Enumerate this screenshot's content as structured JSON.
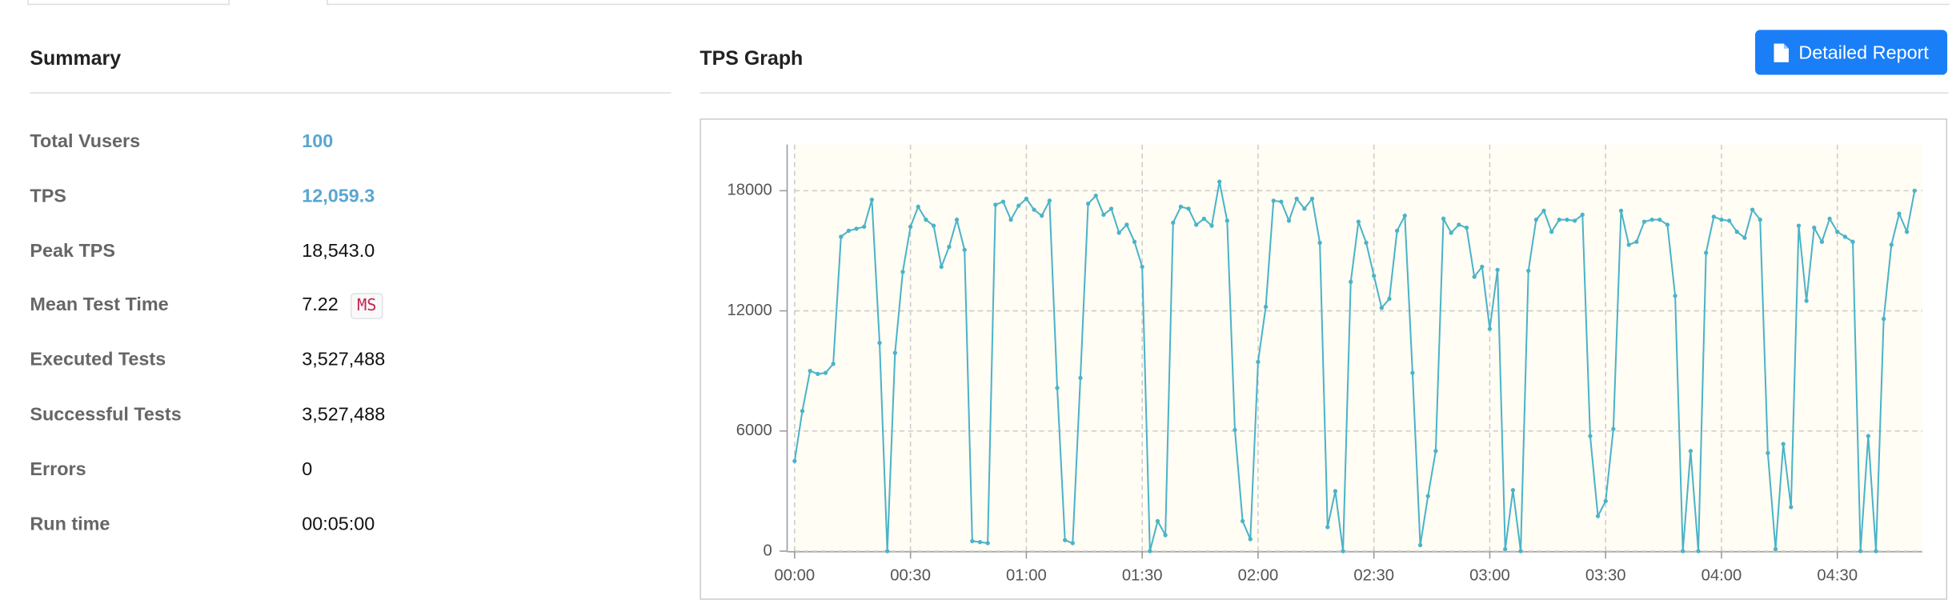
{
  "summary": {
    "title": "Summary",
    "rows": [
      {
        "label": "Total Vusers",
        "value": "100"
      },
      {
        "label": "TPS",
        "value": "12,059.3"
      },
      {
        "label": "Peak TPS",
        "value": "18,543.0"
      },
      {
        "label": "Mean Test Time",
        "value": "7.22",
        "unit": "MS"
      },
      {
        "label": "Executed Tests",
        "value": "3,527,488"
      },
      {
        "label": "Successful Tests",
        "value": "3,527,488"
      },
      {
        "label": "Errors",
        "value": "0"
      },
      {
        "label": "Run time",
        "value": "00:05:00"
      }
    ]
  },
  "graph_title": "TPS Graph",
  "button": "Detailed Report",
  "chart_data": {
    "type": "line",
    "color": "#4bb3c8",
    "grid": true,
    "x": [
      0,
      2,
      4,
      6,
      8,
      10,
      12,
      14,
      16,
      18,
      20,
      22,
      24,
      26,
      28,
      30,
      32,
      34,
      36,
      38,
      40,
      42,
      44,
      46,
      48,
      50,
      52,
      54,
      56,
      58,
      60,
      62,
      64,
      66,
      68,
      70,
      72,
      74,
      76,
      78,
      80,
      82,
      84,
      86,
      88,
      90,
      92,
      94,
      96,
      98,
      100,
      102,
      104,
      106,
      108,
      110,
      112,
      114,
      116,
      118,
      120,
      122,
      124,
      126,
      128,
      130,
      132,
      134,
      136,
      138,
      140,
      142,
      144,
      146,
      148,
      150,
      152,
      154,
      156,
      158,
      160,
      162,
      164,
      166,
      168,
      170,
      172,
      174,
      176,
      178,
      180,
      182,
      184,
      186,
      188,
      190,
      192,
      194,
      196,
      198,
      200,
      202,
      204,
      206,
      208,
      210,
      212,
      214,
      216,
      218,
      220,
      222,
      224,
      226,
      228,
      230,
      232,
      234,
      236,
      238,
      240,
      242,
      244,
      246,
      248,
      250,
      252,
      254,
      256,
      258,
      260,
      262,
      264,
      266,
      268,
      270,
      272,
      274,
      276,
      278,
      280,
      282,
      284,
      286,
      288,
      290
    ],
    "values": [
      4500,
      7000,
      9000,
      8850,
      8900,
      9350,
      15700,
      16000,
      16100,
      16200,
      17550,
      10400,
      0,
      9900,
      13950,
      16200,
      17200,
      16550,
      16250,
      14200,
      15200,
      16550,
      15050,
      500,
      450,
      400,
      17300,
      17450,
      16550,
      17250,
      17600,
      17050,
      16750,
      17500,
      8150,
      550,
      400,
      8650,
      17350,
      17750,
      16800,
      17100,
      15900,
      16300,
      15450,
      14200,
      0,
      1500,
      800,
      16400,
      17200,
      17100,
      16300,
      16600,
      16250,
      18450,
      16500,
      6050,
      1500,
      600,
      9450,
      12200,
      17500,
      17450,
      16500,
      17600,
      17100,
      17600,
      15400,
      1200,
      3000,
      0,
      13450,
      16450,
      15400,
      13750,
      12150,
      12600,
      16000,
      16750,
      8900,
      300,
      2750,
      5000,
      16600,
      15900,
      16300,
      16150,
      13700,
      14200,
      11100,
      14050,
      100,
      3050,
      0,
      14000,
      16550,
      17000,
      15950,
      16550,
      16550,
      16500,
      16800,
      5750,
      1750,
      2500,
      6100,
      17000,
      15300,
      15450,
      16450,
      16550,
      16550,
      16300,
      12750,
      0,
      5000,
      0,
      14900,
      16700,
      16550,
      16500,
      15950,
      15650,
      17050,
      16550,
      4900,
      100,
      5350,
      2200,
      16250,
      12500,
      16150,
      15450,
      16600,
      15950,
      15700,
      15450,
      0,
      5750,
      0,
      11600,
      15300,
      16850,
      15950,
      18000
    ],
    "xlim": [
      0,
      292
    ],
    "ylim": [
      0,
      20300
    ],
    "yticks": [
      0,
      6000,
      12000,
      18000
    ],
    "xticks": [
      {
        "value": 0,
        "label": "00:00"
      },
      {
        "value": 30,
        "label": "00:30"
      },
      {
        "value": 60,
        "label": "01:00"
      },
      {
        "value": 90,
        "label": "01:30"
      },
      {
        "value": 120,
        "label": "02:00"
      },
      {
        "value": 150,
        "label": "02:30"
      },
      {
        "value": 180,
        "label": "03:00"
      },
      {
        "value": 210,
        "label": "03:30"
      },
      {
        "value": 240,
        "label": "04:00"
      },
      {
        "value": 270,
        "label": "04:30"
      }
    ]
  }
}
